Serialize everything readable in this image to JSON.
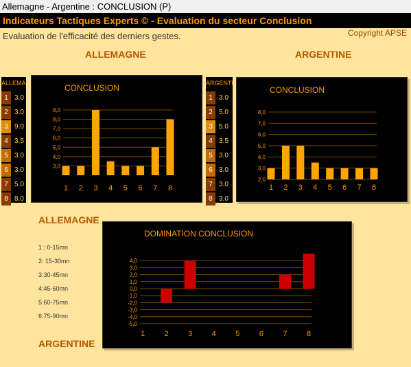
{
  "window": {
    "title": "Allemagne - Argentine : CONCLUSION (P)"
  },
  "header": {
    "title": "Indicateurs Tactiques Experts © - Evaluation du secteur Conclusion"
  },
  "subtitle": "Evaluation de l'efficacité des derniers gestes.",
  "copyright": "Copyright APSE",
  "teams": {
    "left": "ALLEMAGNE",
    "right": "ARGENTINE"
  },
  "tables": {
    "left": {
      "header": "ALLEMAGNE",
      "rows": [
        {
          "i": "1",
          "v": "3.0"
        },
        {
          "i": "2",
          "v": "3.0"
        },
        {
          "i": "3",
          "v": "9.0"
        },
        {
          "i": "4",
          "v": "3.5"
        },
        {
          "i": "5",
          "v": "3.0"
        },
        {
          "i": "6",
          "v": "3.0"
        },
        {
          "i": "7",
          "v": "5.0"
        },
        {
          "i": "8",
          "v": "8.0"
        }
      ]
    },
    "right": {
      "header": "ARGENTINE",
      "rows": [
        {
          "i": "1",
          "v": "3.0"
        },
        {
          "i": "2",
          "v": "5.0"
        },
        {
          "i": "3",
          "v": "5.0"
        },
        {
          "i": "4",
          "v": "3.5"
        },
        {
          "i": "5",
          "v": "3.0"
        },
        {
          "i": "6",
          "v": "3.0"
        },
        {
          "i": "7",
          "v": "3.0"
        },
        {
          "i": "8",
          "v": "3.0"
        }
      ]
    }
  },
  "legend": {
    "items": [
      "1 : 0-15mn",
      "2: 15-30mn",
      "3:30-45mn",
      "4:45-60mn",
      "5:60-75mn",
      "6:75-90mn"
    ]
  },
  "colors": {
    "bar": "#ffa500",
    "domination": "#cc0000",
    "grid": "#7a4a00",
    "title": "#ff9900"
  },
  "chart_data": [
    {
      "type": "bar",
      "title": "CONCLUSION",
      "categories": [
        "1",
        "2",
        "3",
        "4",
        "5",
        "6",
        "7",
        "8"
      ],
      "values": [
        3.0,
        3.0,
        9.0,
        3.5,
        3.0,
        3.0,
        5.0,
        8.0
      ],
      "ylim": [
        2.0,
        9.0
      ],
      "yticks": [
        "3,0",
        "4,0",
        "5,0",
        "6,0",
        "7,0",
        "8,0",
        "9,0"
      ],
      "grid": true
    },
    {
      "type": "bar",
      "title": "CONCLUSION",
      "categories": [
        "1",
        "2",
        "3",
        "4",
        "5",
        "6",
        "7",
        "8"
      ],
      "values": [
        3.0,
        5.0,
        5.0,
        3.5,
        3.0,
        3.0,
        3.0,
        3.0
      ],
      "ylim": [
        2.0,
        8.0
      ],
      "yticks": [
        "2,0",
        "3,0",
        "4,0",
        "5,0",
        "6,0",
        "7,0",
        "8,0"
      ],
      "grid": true
    },
    {
      "type": "bar",
      "title": "DOMINATION CONCLUSION",
      "categories": [
        "1",
        "2",
        "3",
        "4",
        "5",
        "6",
        "7",
        "8"
      ],
      "values": [
        0,
        -2.0,
        4.0,
        0,
        0,
        0,
        2.0,
        5.0
      ],
      "ylim": [
        -5.0,
        5.0
      ],
      "yticks": [
        "-5,0",
        "-4,0",
        "-3,0",
        "-2,0",
        "-1,0",
        "0,0",
        "1,0",
        "2,0",
        "3,0",
        "4,0"
      ],
      "grid": true
    }
  ]
}
